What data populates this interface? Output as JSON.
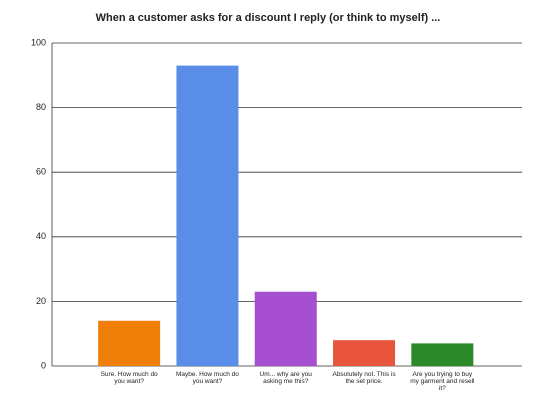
{
  "chart_data": {
    "type": "bar",
    "title": "When a customer asks for a discount I reply (or think to myself) ...",
    "categories": [
      "Sure. How much do you want?",
      "Maybe. How much do you want?",
      "Um... why are you asking me this?",
      "Absolutely not. This is the set price.",
      "Are you trying to buy my garment and resell it?"
    ],
    "values": [
      14,
      93,
      23,
      8,
      7
    ],
    "colors": [
      "#f07f0a",
      "#5a8de8",
      "#a64fd0",
      "#e8553c",
      "#2a8a2a"
    ],
    "ylim": [
      0,
      100
    ],
    "yticks": [
      0,
      20,
      40,
      60,
      80,
      100
    ],
    "grid": true
  }
}
